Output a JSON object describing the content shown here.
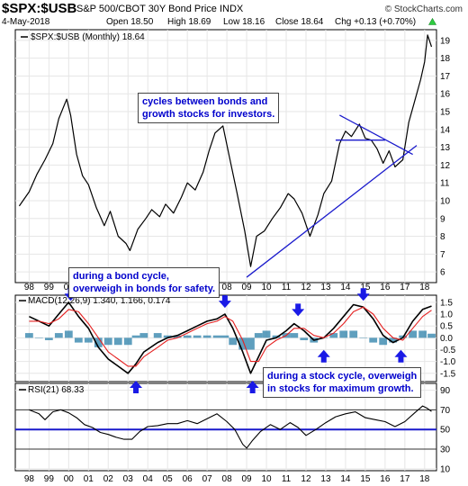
{
  "header": {
    "symbol": "$SPX:$USB",
    "description": "S&P 500/CBOT 30Y Bond Price INDX",
    "watermark": "© StockCharts.com",
    "date": "4-May-2018",
    "open": "Open 18.50",
    "high": "High 18.69",
    "low": "Low 18.16",
    "close": "Close 18.64",
    "change": "Chg +0.13 (+0.70%)",
    "change_arrow": "triangle-up-icon"
  },
  "annotations": {
    "top_cycle": "cycles between bonds and\ngrowth stocks for investors.",
    "bond_cycle": "during a bond cycle,\noverweigh in bonds for safety.",
    "stock_cycle": "during a stock cycle, overweigh\nin stocks for maximum growth."
  },
  "chart_data": [
    {
      "type": "line",
      "legend": "$SPX:$USB (Monthly) 18.64",
      "x": [
        1997.5,
        1998.0,
        1998.4,
        1998.8,
        1999.2,
        1999.5,
        1999.9,
        2000.1,
        2000.4,
        2000.7,
        2001.0,
        2001.4,
        2001.8,
        2002.1,
        2002.5,
        2002.9,
        2003.1,
        2003.5,
        2003.9,
        2004.2,
        2004.6,
        2004.9,
        2005.3,
        2005.7,
        2006.0,
        2006.4,
        2006.8,
        2007.1,
        2007.4,
        2007.8,
        2008.1,
        2008.5,
        2008.9,
        2009.2,
        2009.5,
        2009.9,
        2010.3,
        2010.7,
        2011.1,
        2011.4,
        2011.8,
        2012.2,
        2012.6,
        2012.9,
        2013.3,
        2013.7,
        2014.0,
        2014.3,
        2014.7,
        2015.0,
        2015.3,
        2015.6,
        2015.9,
        2016.2,
        2016.5,
        2016.9,
        2017.2,
        2017.5,
        2017.8,
        2018.0,
        2018.15,
        2018.35
      ],
      "values": [
        9.7,
        10.5,
        11.5,
        12.3,
        13.2,
        14.6,
        15.7,
        14.8,
        12.6,
        11.4,
        10.9,
        9.6,
        8.6,
        9.4,
        8.0,
        7.6,
        7.2,
        8.4,
        9.0,
        9.5,
        9.1,
        9.8,
        9.3,
        10.2,
        11.0,
        10.6,
        11.6,
        12.8,
        13.8,
        14.2,
        12.6,
        10.5,
        8.3,
        6.3,
        8.0,
        8.3,
        9.0,
        9.6,
        10.4,
        10.1,
        9.3,
        8.0,
        9.2,
        10.4,
        11.1,
        13.2,
        13.9,
        13.6,
        14.3,
        13.5,
        13.4,
        12.9,
        12.1,
        12.8,
        11.9,
        12.3,
        14.4,
        15.6,
        16.8,
        17.8,
        19.3,
        18.64
      ],
      "overlays": [
        {
          "kind": "support-trendline",
          "x": [
            2009.0,
            2017.6
          ],
          "y": [
            5.7,
            13.1
          ]
        },
        {
          "kind": "resistance-trendline",
          "x": [
            2013.7,
            2017.4
          ],
          "y": [
            14.8,
            12.6
          ]
        },
        {
          "kind": "horizontal-line",
          "x": [
            2013.5,
            2016.0
          ],
          "y": [
            13.4,
            13.4
          ]
        }
      ],
      "xlim": [
        1997.3,
        2018.6
      ],
      "ylim": [
        5.4,
        19.6
      ],
      "yticks": [
        6,
        7,
        8,
        9,
        10,
        11,
        12,
        13,
        14,
        15,
        16,
        17,
        18,
        19
      ],
      "xtick_labels": [
        "98",
        "99",
        "00",
        "01",
        "02",
        "03",
        "04",
        "05",
        "06",
        "07",
        "08",
        "09",
        "10",
        "11",
        "12",
        "13",
        "14",
        "15",
        "16",
        "17",
        "18"
      ],
      "color": "#000000",
      "grid": true
    },
    {
      "type": "line",
      "legend": "MACD(12,26,9) 1.340, 1.166, 0.174",
      "x": [
        1998.0,
        1998.5,
        1999.0,
        1999.5,
        2000.0,
        2000.5,
        2001.0,
        2001.5,
        2002.0,
        2002.5,
        2003.0,
        2003.4,
        2003.8,
        2004.5,
        2005.0,
        2005.5,
        2006.0,
        2006.5,
        2007.0,
        2007.5,
        2007.9,
        2008.3,
        2008.8,
        2009.2,
        2009.6,
        2010.0,
        2010.5,
        2011.0,
        2011.4,
        2011.9,
        2012.4,
        2012.9,
        2013.4,
        2013.9,
        2014.4,
        2014.9,
        2015.4,
        2015.9,
        2016.4,
        2016.9,
        2017.4,
        2017.9,
        2018.35
      ],
      "series": [
        {
          "values": [
            0.9,
            0.7,
            0.5,
            1.0,
            1.5,
            0.9,
            0.4,
            -0.4,
            -0.9,
            -1.2,
            -1.5,
            -1.1,
            -0.6,
            -0.2,
            0.0,
            0.1,
            0.3,
            0.5,
            0.7,
            0.8,
            1.0,
            0.4,
            -0.6,
            -1.5,
            -0.8,
            -0.1,
            0.0,
            0.3,
            0.6,
            0.3,
            -0.1,
            0.0,
            0.4,
            0.9,
            1.4,
            1.3,
            0.8,
            0.1,
            -0.2,
            0.0,
            0.7,
            1.2,
            1.34
          ],
          "color": "#000000"
        },
        {
          "values": [
            0.7,
            0.7,
            0.6,
            0.8,
            1.2,
            1.1,
            0.6,
            0.0,
            -0.6,
            -0.9,
            -1.2,
            -1.2,
            -0.8,
            -0.4,
            -0.1,
            0.0,
            0.2,
            0.4,
            0.6,
            0.7,
            0.9,
            0.7,
            -0.1,
            -1.0,
            -1.0,
            -0.4,
            -0.1,
            0.1,
            0.4,
            0.4,
            0.1,
            0.0,
            0.2,
            0.6,
            1.1,
            1.3,
            1.0,
            0.4,
            0.0,
            -0.1,
            0.4,
            0.9,
            1.166
          ],
          "color": "#e52020"
        }
      ],
      "histogram": {
        "values": [
          0.2,
          0.0,
          -0.1,
          0.2,
          0.3,
          -0.2,
          -0.2,
          -0.4,
          -0.3,
          -0.3,
          -0.3,
          0.1,
          0.2,
          0.2,
          0.1,
          0.1,
          0.1,
          0.1,
          0.1,
          0.1,
          0.1,
          -0.3,
          -0.5,
          -0.5,
          0.2,
          0.3,
          0.1,
          0.2,
          0.2,
          -0.1,
          -0.2,
          0.0,
          0.2,
          0.3,
          0.3,
          0.0,
          -0.2,
          -0.3,
          -0.2,
          0.1,
          0.3,
          0.3,
          0.174
        ],
        "color": "#2a7fa8"
      },
      "ylim": [
        -1.85,
        1.8
      ],
      "yticks": [
        -1.5,
        -1.0,
        -0.5,
        0.0,
        0.5,
        1.0,
        1.5
      ],
      "ytick_labels": [
        "-1.5",
        "-1.0",
        "-0.5",
        "0.0",
        "0.5",
        "1.0",
        "1.5"
      ],
      "markers": [
        {
          "icon": "arrow-down-icon",
          "x": 2000.1,
          "y": 1.6
        },
        {
          "icon": "arrow-up-icon",
          "x": 2003.4,
          "y": -1.85
        },
        {
          "icon": "arrow-down-icon",
          "x": 2007.9,
          "y": 1.3
        },
        {
          "icon": "arrow-up-icon",
          "x": 2009.3,
          "y": -1.85
        },
        {
          "icon": "arrow-down-icon",
          "x": 2011.6,
          "y": 0.95
        },
        {
          "icon": "arrow-up-icon",
          "x": 2012.9,
          "y": -0.55
        },
        {
          "icon": "arrow-down-icon",
          "x": 2014.9,
          "y": 1.6
        },
        {
          "icon": "arrow-up-icon",
          "x": 2016.8,
          "y": -0.55
        }
      ]
    },
    {
      "type": "line",
      "legend": "RSI(21) 68.33",
      "x": [
        1998.0,
        1998.5,
        1998.8,
        1999.2,
        1999.6,
        2000.0,
        2000.4,
        2000.8,
        2001.2,
        2001.6,
        2002.0,
        2002.4,
        2002.8,
        2003.2,
        2003.6,
        2004.0,
        2004.5,
        2005.0,
        2005.5,
        2006.0,
        2006.5,
        2007.0,
        2007.5,
        2008.0,
        2008.4,
        2008.8,
        2009.0,
        2009.3,
        2009.7,
        2010.2,
        2010.7,
        2011.2,
        2011.6,
        2012.0,
        2012.5,
        2013.0,
        2013.5,
        2014.0,
        2014.5,
        2015.0,
        2015.5,
        2016.0,
        2016.5,
        2017.0,
        2017.5,
        2017.9,
        2018.1,
        2018.35
      ],
      "values": [
        70,
        66,
        60,
        68,
        70,
        67,
        62,
        55,
        52,
        47,
        45,
        42,
        40,
        40,
        48,
        53,
        54,
        56,
        56,
        59,
        56,
        61,
        66,
        58,
        50,
        35,
        31,
        39,
        48,
        55,
        50,
        57,
        52,
        44,
        50,
        57,
        63,
        66,
        68,
        62,
        60,
        58,
        53,
        58,
        67,
        74,
        72,
        68.33
      ],
      "ylim": [
        8,
        97
      ],
      "yticks": [
        10,
        30,
        50,
        70,
        90
      ],
      "reference_lines": [
        30,
        50,
        70
      ],
      "thick_line": 50
    }
  ]
}
